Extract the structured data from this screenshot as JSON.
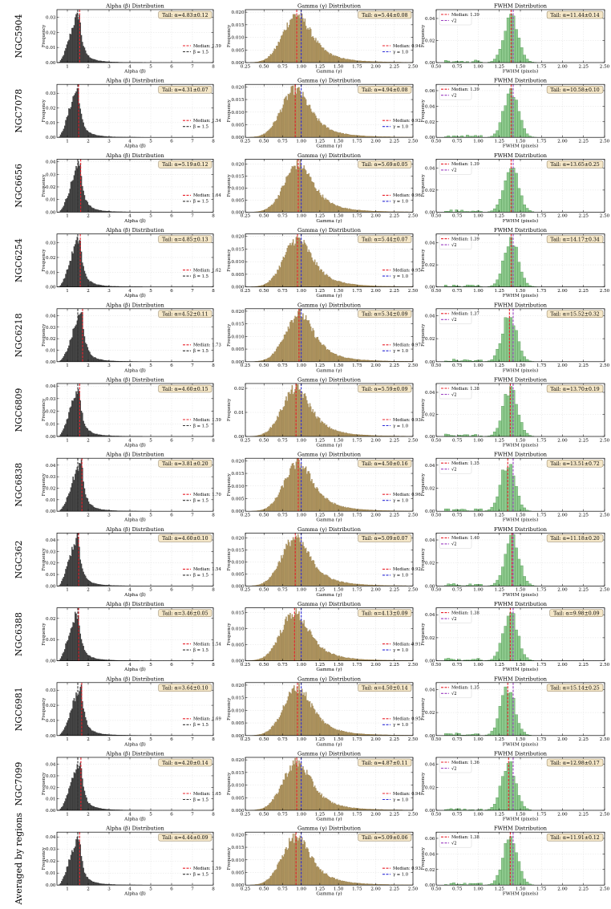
{
  "figure": {
    "column_titles": [
      "Alpha (β) Distribution",
      "Gamma (γ) Distribution",
      "FWHM Distribution"
    ],
    "xlabels": [
      "Alpha (β)",
      "Gamma (γ)",
      "FWHM (pixels)"
    ],
    "ylabel": "Frequency",
    "ref_labels": [
      "β = 1.5",
      "γ = 1.0",
      "√2"
    ],
    "median_prefix": "Median: ",
    "tail_prefix": "Tail: α=",
    "colors": {
      "alpha_bar": "#404040",
      "gamma_bar": "#b0955e",
      "fwhm_bar": "#8dc98d",
      "median_line": "#e8202a",
      "alpha_ref": "#333333",
      "gamma_ref": "#2b2bd6",
      "fwhm_ref": "#9b3fc0",
      "tail_box": "#f5e7c8"
    }
  },
  "chart_data": {
    "type": "bar",
    "axes": {
      "alpha": {
        "xlim": [
          0.5,
          8.0
        ],
        "xticks": [
          "1",
          "2",
          "3",
          "4",
          "5",
          "6",
          "7",
          "8"
        ],
        "ref": 1.5
      },
      "gamma": {
        "xlim": [
          0.25,
          2.5
        ],
        "xticks": [
          "0.25",
          "0.50",
          "0.75",
          "1.00",
          "1.25",
          "1.50",
          "1.75",
          "2.00",
          "2.25",
          "2.50"
        ],
        "ref": 1.0
      },
      "fwhm": {
        "xlim": [
          0.5,
          2.5
        ],
        "xticks": [
          "0.50",
          "0.75",
          "1.00",
          "1.25",
          "1.50",
          "1.75",
          "2.00",
          "2.25",
          "2.50"
        ],
        "ref": 1.414
      }
    },
    "rows": [
      {
        "name": "NGC5904",
        "alpha": {
          "median": 1.59,
          "median_label": "1.59",
          "tail": "4.83±0.12",
          "ymax": 0.035,
          "yticks": [
            "0.00",
            "0.01",
            "0.02",
            "0.03"
          ]
        },
        "gamma": {
          "median": 0.94,
          "median_label": "0.94",
          "tail": "5.44±0.08",
          "ymax": 0.021,
          "yticks": [
            "0.000",
            "0.005",
            "0.010",
            "0.015",
            "0.020"
          ]
        },
        "fwhm": {
          "median": 1.39,
          "median_label": "1.39",
          "tail": "11.44±0.14",
          "ymax": 0.048,
          "yticks": [
            "0.00",
            "0.02",
            "0.04"
          ]
        }
      },
      {
        "name": "NGC7078",
        "alpha": {
          "median": 1.54,
          "median_label": "1.54",
          "tail": "4.31±0.07",
          "ymax": 0.036,
          "yticks": [
            "0.00",
            "0.01",
            "0.02",
            "0.03"
          ]
        },
        "gamma": {
          "median": 0.92,
          "median_label": "0.92",
          "tail": "4.94±0.08",
          "ymax": 0.021,
          "yticks": [
            "0.000",
            "0.005",
            "0.010",
            "0.015",
            "0.020"
          ]
        },
        "fwhm": {
          "median": 1.39,
          "median_label": "1.39",
          "tail": "10.58±0.10",
          "ymax": 0.068,
          "yticks": [
            "0.00",
            "0.02",
            "0.04",
            "0.06"
          ]
        }
      },
      {
        "name": "NGC6656",
        "alpha": {
          "median": 1.64,
          "median_label": "1.64",
          "tail": "5.19±0.12",
          "ymax": 0.042,
          "yticks": [
            "0.00",
            "0.01",
            "0.02",
            "0.03",
            "0.04"
          ]
        },
        "gamma": {
          "median": 0.96,
          "median_label": "0.96",
          "tail": "5.69±0.05",
          "ymax": 0.022,
          "yticks": [
            "0.000",
            "0.005",
            "0.010",
            "0.015",
            "0.020"
          ]
        },
        "fwhm": {
          "median": 1.39,
          "median_label": "1.39",
          "tail": "13.65±0.25",
          "ymax": 0.048,
          "yticks": [
            "0.00",
            "0.02",
            "0.04"
          ]
        }
      },
      {
        "name": "NGC6254",
        "alpha": {
          "median": 1.62,
          "median_label": "1.62",
          "tail": "4.85±0.13",
          "ymax": 0.036,
          "yticks": [
            "0.00",
            "0.01",
            "0.02",
            "0.03"
          ]
        },
        "gamma": {
          "median": 0.95,
          "median_label": "0.95",
          "tail": "5.44±0.07",
          "ymax": 0.021,
          "yticks": [
            "0.000",
            "0.005",
            "0.010",
            "0.015",
            "0.020"
          ]
        },
        "fwhm": {
          "median": 1.39,
          "median_label": "1.39",
          "tail": "14.17±0.34",
          "ymax": 0.048,
          "yticks": [
            "0.00",
            "0.02",
            "0.04"
          ]
        }
      },
      {
        "name": "NGC6218",
        "alpha": {
          "median": 1.73,
          "median_label": "1.73",
          "tail": "4.52±0.11",
          "ymax": 0.046,
          "yticks": [
            "0.00",
            "0.01",
            "0.02",
            "0.03",
            "0.04"
          ]
        },
        "gamma": {
          "median": 0.97,
          "median_label": "0.97",
          "tail": "5.34±0.09",
          "ymax": 0.021,
          "yticks": [
            "0.000",
            "0.005",
            "0.010",
            "0.015",
            "0.020"
          ]
        },
        "fwhm": {
          "median": 1.37,
          "median_label": "1.37",
          "tail": "15.52±0.32",
          "ymax": 0.046,
          "yticks": [
            "0.00",
            "0.02",
            "0.04"
          ]
        }
      },
      {
        "name": "NGC6809",
        "alpha": {
          "median": 1.59,
          "median_label": "1.59",
          "tail": "4.60±0.15",
          "ymax": 0.042,
          "yticks": [
            "0.00",
            "0.01",
            "0.02",
            "0.03",
            "0.04"
          ]
        },
        "gamma": {
          "median": 0.93,
          "median_label": "0.93",
          "tail": "5.59±0.09",
          "ymax": 0.022,
          "yticks": [
            "0.00",
            "0.01",
            "0.02"
          ]
        },
        "fwhm": {
          "median": 1.38,
          "median_label": "1.38",
          "tail": "13.70±0.19",
          "ymax": 0.048,
          "yticks": [
            "0.00",
            "0.02",
            "0.04"
          ]
        }
      },
      {
        "name": "NGC6838",
        "alpha": {
          "median": 1.7,
          "median_label": "1.70",
          "tail": "3.81±0.20",
          "ymax": 0.046,
          "yticks": [
            "0.00",
            "0.01",
            "0.02",
            "0.03",
            "0.04"
          ]
        },
        "gamma": {
          "median": 0.96,
          "median_label": "0.96",
          "tail": "4.50±0.16",
          "ymax": 0.021,
          "yticks": [
            "0.000",
            "0.005",
            "0.010",
            "0.015",
            "0.020"
          ]
        },
        "fwhm": {
          "median": 1.35,
          "median_label": "1.35",
          "tail": "13.51±0.72",
          "ymax": 0.046,
          "yticks": [
            "0.00",
            "0.02",
            "0.04"
          ]
        }
      },
      {
        "name": "NGC362",
        "alpha": {
          "median": 1.54,
          "median_label": "1.54",
          "tail": "4.60±0.10",
          "ymax": 0.046,
          "yticks": [
            "0.00",
            "0.01",
            "0.02",
            "0.03",
            "0.04"
          ]
        },
        "gamma": {
          "median": 0.92,
          "median_label": "0.92",
          "tail": "5.09±0.07",
          "ymax": 0.022,
          "yticks": [
            "0.000",
            "0.005",
            "0.010",
            "0.015",
            "0.020"
          ]
        },
        "fwhm": {
          "median": 1.4,
          "median_label": "1.40",
          "tail": "11.18±0.20",
          "ymax": 0.046,
          "yticks": [
            "0.00",
            "0.02",
            "0.04"
          ]
        }
      },
      {
        "name": "NGC6388",
        "alpha": {
          "median": 1.54,
          "median_label": "1.54",
          "tail": "3.46±0.05",
          "ymax": 0.025,
          "yticks": [
            "0.00",
            "0.01",
            "0.02"
          ]
        },
        "gamma": {
          "median": 0.91,
          "median_label": "0.91",
          "tail": "4.13±0.09",
          "ymax": 0.0165,
          "yticks": [
            "0.000",
            "0.005",
            "0.010",
            "0.015"
          ]
        },
        "fwhm": {
          "median": 1.38,
          "median_label": "1.38",
          "tail": "9.98±0.09",
          "ymax": 0.046,
          "yticks": [
            "0.00",
            "0.02",
            "0.04"
          ]
        }
      },
      {
        "name": "NGC6981",
        "alpha": {
          "median": 1.69,
          "median_label": "1.69",
          "tail": "3.64±0.10",
          "ymax": 0.035,
          "yticks": [
            "0.00",
            "0.01",
            "0.02",
            "0.03"
          ]
        },
        "gamma": {
          "median": 0.95,
          "median_label": "0.95",
          "tail": "4.50±0.14",
          "ymax": 0.021,
          "yticks": [
            "0.000",
            "0.005",
            "0.010",
            "0.015",
            "0.020"
          ]
        },
        "fwhm": {
          "median": 1.35,
          "median_label": "1.35",
          "tail": "15.14±0.25",
          "ymax": 0.046,
          "yticks": [
            "0.00",
            "0.02",
            "0.04"
          ]
        }
      },
      {
        "name": "NGC7099",
        "alpha": {
          "median": 1.65,
          "median_label": "1.65",
          "tail": "4.20±0.14",
          "ymax": 0.046,
          "yticks": [
            "0.00",
            "0.01",
            "0.02",
            "0.03",
            "0.04"
          ]
        },
        "gamma": {
          "median": 0.94,
          "median_label": "0.94",
          "tail": "4.87±0.11",
          "ymax": 0.021,
          "yticks": [
            "0.000",
            "0.005",
            "0.010",
            "0.015",
            "0.020"
          ]
        },
        "fwhm": {
          "median": 1.36,
          "median_label": "1.36",
          "tail": "12.98±0.17",
          "ymax": 0.046,
          "yticks": [
            "0.00",
            "0.02",
            "0.04"
          ]
        }
      },
      {
        "name": "Averaged by regions",
        "alpha": {
          "median": 1.59,
          "median_label": "1.59",
          "tail": "4.44±0.09",
          "ymax": 0.044,
          "yticks": [
            "0.00",
            "0.01",
            "0.02",
            "0.03",
            "0.04"
          ]
        },
        "gamma": {
          "median": 0.93,
          "median_label": "0.93",
          "tail": "5.09±0.06",
          "ymax": 0.021,
          "yticks": [
            "0.000",
            "0.005",
            "0.010",
            "0.015",
            "0.020"
          ]
        },
        "fwhm": {
          "median": 1.38,
          "median_label": "1.38",
          "tail": "11.91±0.12",
          "ymax": 0.068,
          "yticks": [
            "0.00",
            "0.02",
            "0.04",
            "0.06"
          ]
        }
      }
    ]
  }
}
